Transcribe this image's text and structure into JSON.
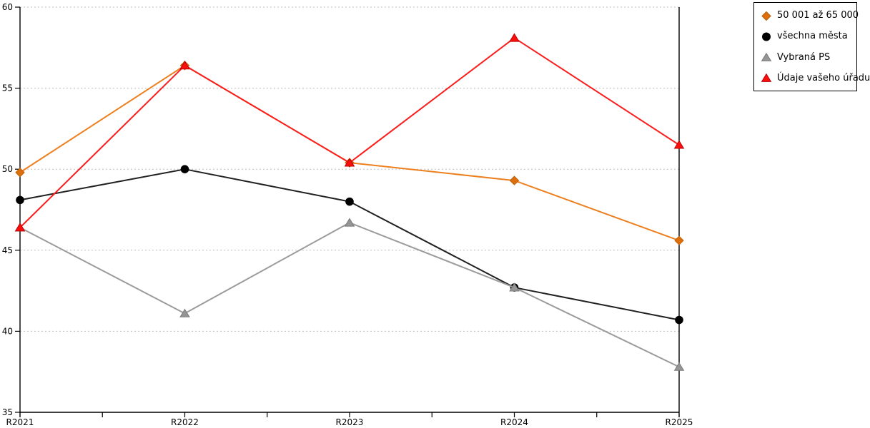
{
  "chart_data": {
    "type": "line",
    "title": "",
    "xlabel": "",
    "ylabel": "",
    "categories": [
      "R2021",
      "R2022",
      "R2023",
      "R2024",
      "R2025"
    ],
    "series": [
      {
        "name": "50 001 až 65 000",
        "marker": "diamond",
        "color": "#EE7F1E",
        "marker_color": "#DD6F0D",
        "edge_color": "#BC5D05",
        "values": [
          49.8,
          56.4,
          50.4,
          49.3,
          45.6
        ]
      },
      {
        "name": "všechna města",
        "marker": "circle",
        "color": "#212121",
        "marker_color": "#000000",
        "edge_color": "#000000",
        "values": [
          48.1,
          50.0,
          48.0,
          42.7,
          40.7
        ]
      },
      {
        "name": "Vybraná PS",
        "marker": "triangle",
        "color": "#9B9B9B",
        "marker_color": "#959595",
        "edge_color": "#7A7A7A",
        "values": [
          46.4,
          41.1,
          46.7,
          42.7,
          37.8
        ]
      },
      {
        "name": "Údaje vašeho úřadu",
        "marker": "triangle",
        "color": "#FA1E1E",
        "marker_color": "#FA0F0F",
        "edge_color": "#BE0000",
        "values": [
          46.4,
          56.4,
          50.4,
          58.1,
          51.5
        ]
      }
    ],
    "ylim": [
      35,
      60
    ],
    "yticks": [
      35,
      40,
      45,
      50,
      55,
      60
    ],
    "ytick_labels": [
      "35",
      "40",
      "45",
      "50",
      "55",
      "60"
    ],
    "x_minor_ticks_between_categories": true,
    "grid": "horizontal-dotted",
    "legend_position": "top-right"
  },
  "colors": {
    "background": "#FFFFFF",
    "grid": "#BDBDBD",
    "axis": "#000000",
    "tick_label": "#000000"
  }
}
